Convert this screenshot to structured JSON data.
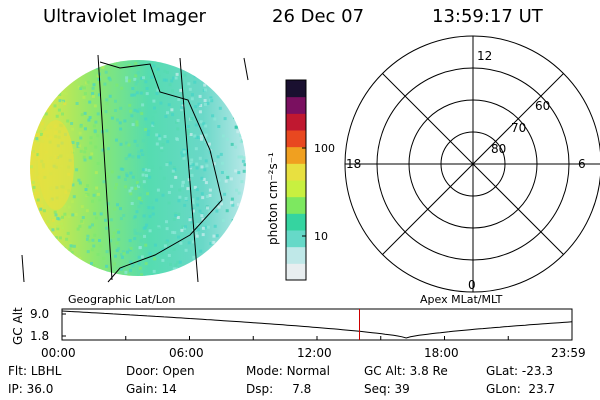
{
  "header": {
    "instrument": "Ultraviolet Imager",
    "date": "26 Dec 07",
    "time": "13:59:17 UT"
  },
  "colorbar": {
    "label": "photon cm⁻²s⁻¹",
    "ticks": [
      "100",
      "10"
    ],
    "scale": "log",
    "colors": [
      "#e8eef0",
      "#bfe8e8",
      "#66d9c8",
      "#35d4a0",
      "#7de860",
      "#c8f040",
      "#e8e040",
      "#f0a020",
      "#e84820",
      "#c01830",
      "#7a1060",
      "#1a1030"
    ]
  },
  "image_panel": {
    "caption": "Geographic Lat/Lon"
  },
  "polar_panel": {
    "caption": "Apex MLat/MLT",
    "mlt_labels": [
      "12",
      "18",
      "6",
      "0"
    ],
    "lat_labels": [
      "60",
      "70",
      "80"
    ]
  },
  "timeline": {
    "axis_label": "GC Alt",
    "y_ticks": [
      "9.0",
      "1.8"
    ],
    "x_ticks": [
      "00:00",
      "06:00",
      "12:00",
      "18:00",
      "23:59"
    ],
    "current_time_marker_hours": 14.0
  },
  "status": {
    "row1": [
      {
        "key": "Flt:",
        "value": "LBHL"
      },
      {
        "key": "Door:",
        "value": "Open"
      },
      {
        "key": "Mode:",
        "value": "Normal"
      },
      {
        "key": "GC Alt:",
        "value": "3.8 Re"
      },
      {
        "key": "GLat:",
        "value": "-23.3"
      }
    ],
    "row2": [
      {
        "key": "IP:",
        "value": "36.0"
      },
      {
        "key": "Gain:",
        "value": "14"
      },
      {
        "key": "Dsp:",
        "value": "7.8"
      },
      {
        "key": "Seq:",
        "value": "39"
      },
      {
        "key": "GLon:",
        "value": "23.7"
      }
    ]
  },
  "accent_colors": {
    "marker": "#cc0000",
    "line": "#000000"
  }
}
